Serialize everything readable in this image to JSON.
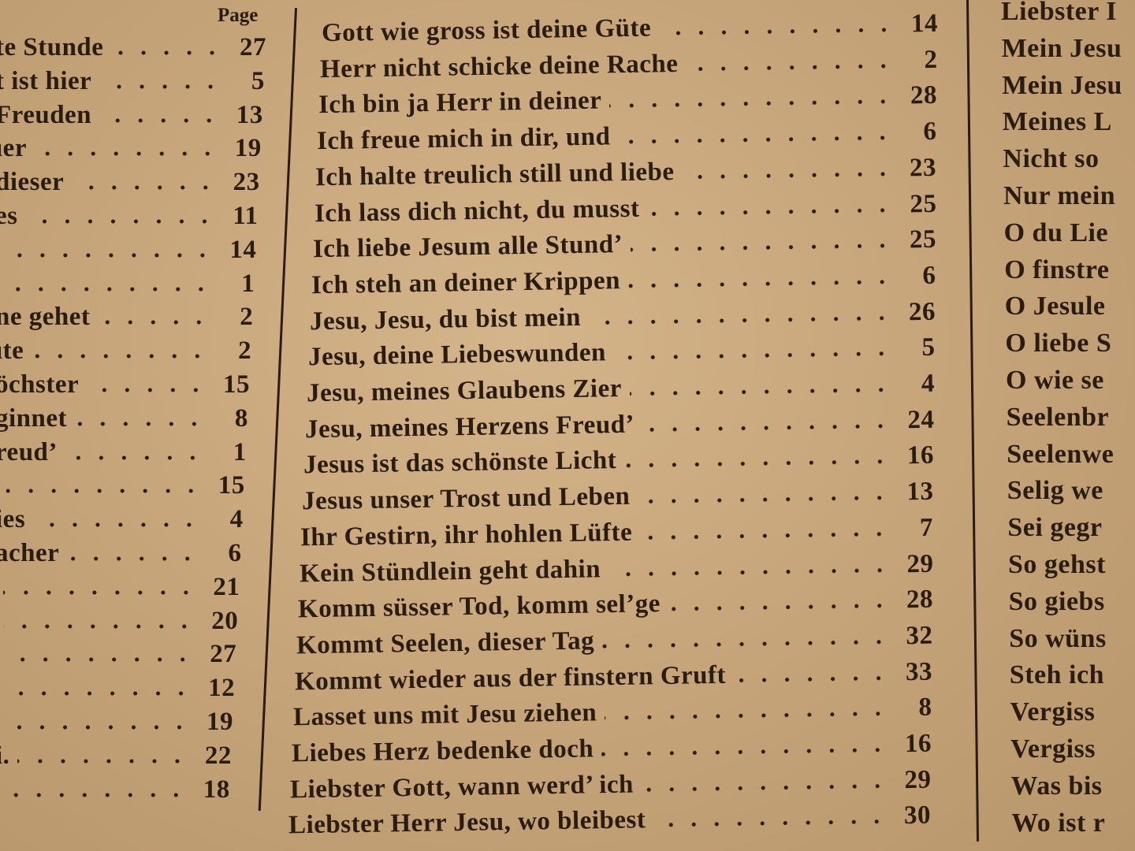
{
  "left_column": {
    "header": "Page",
    "entries": [
      {
        "title": "te Stunde",
        "page": "27"
      },
      {
        "title": "t ist hier",
        "page": "5"
      },
      {
        "title": "Freuden",
        "page": "13"
      },
      {
        "title": "ıer",
        "page": "19"
      },
      {
        "title": "dieser",
        "page": "23"
      },
      {
        "title": "es",
        "page": "11"
      },
      {
        "title": "",
        "page": "14"
      },
      {
        "title": "",
        "page": "1"
      },
      {
        "title": "ne gehet",
        "page": "2"
      },
      {
        "title": "ıte",
        "page": "2"
      },
      {
        "title": "öchster",
        "page": "15"
      },
      {
        "title": "ginnet",
        "page": "8"
      },
      {
        "title": "reud’",
        "page": "1"
      },
      {
        "title": "",
        "page": "15"
      },
      {
        "title": "ies",
        "page": "4"
      },
      {
        "title": "acher",
        "page": "6"
      },
      {
        "title": "",
        "page": "21"
      },
      {
        "title": "",
        "page": "20"
      },
      {
        "title": "",
        "page": "27"
      },
      {
        "title": "",
        "page": "12"
      },
      {
        "title": "",
        "page": "19"
      },
      {
        "title": "i.",
        "page": "22"
      },
      {
        "title": "",
        "page": "18"
      }
    ]
  },
  "middle_column": {
    "entries": [
      {
        "title": "Gott wie gross ist deine Güte",
        "page": "14"
      },
      {
        "title": "Herr nicht schicke deine Rache",
        "page": "2"
      },
      {
        "title": "Ich bin ja Herr in deiner",
        "page": "28"
      },
      {
        "title": "Ich freue mich in dir, und",
        "page": "6"
      },
      {
        "title": "Ich halte treulich still und liebe",
        "page": "23"
      },
      {
        "title": "Ich lass dich nicht, du musst",
        "page": "25"
      },
      {
        "title": "Ich liebe Jesum alle Stund’",
        "page": "25"
      },
      {
        "title": "Ich steh an deiner Krippen",
        "page": "6"
      },
      {
        "title": "Jesu, Jesu, du bist mein",
        "page": "26"
      },
      {
        "title": "Jesu, deine Liebeswunden",
        "page": "5"
      },
      {
        "title": "Jesu, meines Glaubens Zier",
        "page": "4"
      },
      {
        "title": "Jesu, meines Herzens Freud’",
        "page": "24"
      },
      {
        "title": "Jesus ist das schönste Licht",
        "page": "16"
      },
      {
        "title": "Jesus unser Trost und Leben",
        "page": "13"
      },
      {
        "title": "Ihr Gestirn, ihr hohlen Lüfte",
        "page": "7"
      },
      {
        "title": "Kein Stündlein geht dahin",
        "page": "29"
      },
      {
        "title": "Komm süsser Tod, komm sel’ge",
        "page": "28"
      },
      {
        "title": "Kommt Seelen, dieser Tag",
        "page": "32"
      },
      {
        "title": "Kommt wieder aus der finstern Gruft",
        "page": "33"
      },
      {
        "title": "Lasset uns mit Jesu ziehen",
        "page": "8"
      },
      {
        "title": "Liebes Herz bedenke doch",
        "page": "16"
      },
      {
        "title": "Liebster Gott, wann werd’ ich",
        "page": "29"
      },
      {
        "title": "Liebster Herr Jesu, wo bleibest",
        "page": "30"
      }
    ]
  },
  "right_column": {
    "entries": [
      "Liebster I",
      "Mein Jesu",
      "Mein Jesu",
      "Meines L",
      "Nicht so",
      "Nur mein",
      "O du Lie",
      "O finstre",
      "O Jesule",
      "O liebe S",
      "O wie se",
      "Seelenbr",
      "Seelenwe",
      "Selig we",
      "Sei gegr",
      "So gehst",
      "So giebs",
      "So wüns",
      "Steh ich",
      "Vergiss",
      "Vergiss",
      "Was bis",
      "Wo ist r"
    ]
  }
}
